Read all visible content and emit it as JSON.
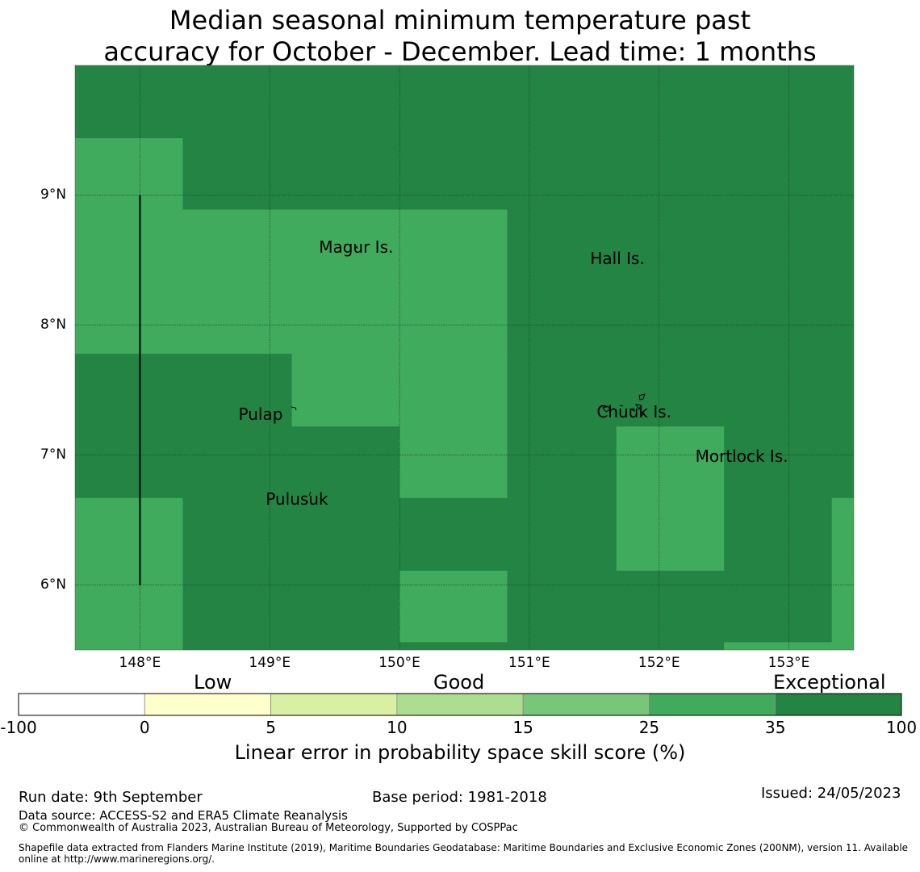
{
  "title": {
    "line1": "Median seasonal minimum temperature past",
    "line2": "accuracy for October - December. Lead time: 1 months"
  },
  "map": {
    "lon_range": [
      147.5,
      153.5
    ],
    "lat_range": [
      5.5,
      10.0
    ],
    "lat_ticks": [
      {
        "value": 9,
        "label": "9°N"
      },
      {
        "value": 8,
        "label": "8°N"
      },
      {
        "value": 7,
        "label": "7°N"
      },
      {
        "value": 6,
        "label": "6°N"
      }
    ],
    "lon_ticks": [
      {
        "value": 148,
        "label": "148°E"
      },
      {
        "value": 149,
        "label": "149°E"
      },
      {
        "value": 150,
        "label": "150°E"
      },
      {
        "value": 151,
        "label": "151°E"
      },
      {
        "value": 152,
        "label": "152°E"
      },
      {
        "value": 153,
        "label": "153°E"
      }
    ],
    "background_category": "35-100",
    "cells_25_35": [
      {
        "lon0": 147.5,
        "lon1": 148.33,
        "lat0": 7.78,
        "lat1": 9.44
      },
      {
        "lon0": 148.33,
        "lon1": 150.83,
        "lat0": 7.78,
        "lat1": 8.89
      },
      {
        "lon0": 149.17,
        "lon1": 150.0,
        "lat0": 7.22,
        "lat1": 7.78
      },
      {
        "lon0": 150.0,
        "lon1": 150.83,
        "lat0": 6.67,
        "lat1": 7.78
      },
      {
        "lon0": 147.5,
        "lon1": 148.33,
        "lat0": 5.5,
        "lat1": 6.67
      },
      {
        "lon0": 150.0,
        "lon1": 150.83,
        "lat0": 5.56,
        "lat1": 6.11
      },
      {
        "lon0": 151.67,
        "lon1": 152.5,
        "lat0": 6.11,
        "lat1": 7.22
      },
      {
        "lon0": 153.33,
        "lon1": 153.5,
        "lat0": 5.5,
        "lat1": 6.67
      },
      {
        "lon0": 152.5,
        "lon1": 153.5,
        "lat0": 5.5,
        "lat1": 5.56
      }
    ],
    "places": [
      {
        "name": "Magur Is.",
        "lon": 149.69,
        "lat": 8.59
      },
      {
        "name": "Hall Is.",
        "lon": 151.78,
        "lat": 8.5
      },
      {
        "name": "Pulap",
        "lon": 149.07,
        "lat": 7.3
      },
      {
        "name": "Chuuk Is.",
        "lon": 151.83,
        "lat": 7.32
      },
      {
        "name": "Mortlock Is.",
        "lon": 152.59,
        "lat": 6.98
      },
      {
        "name": "Pulusuk",
        "lon": 149.28,
        "lat": 6.65
      }
    ],
    "boundary_line": {
      "lon": 148.0,
      "lat0": 6.0,
      "lat1": 9.0
    }
  },
  "legend": {
    "category_labels": [
      "Low",
      "Good",
      "Exceptional"
    ],
    "bins": [
      {
        "from": "-100",
        "to": "0",
        "color": "#ffffff"
      },
      {
        "from": "0",
        "to": "5",
        "color": "#ffffcc"
      },
      {
        "from": "5",
        "to": "10",
        "color": "#d9f0a3"
      },
      {
        "from": "10",
        "to": "15",
        "color": "#addd8e"
      },
      {
        "from": "15",
        "to": "25",
        "color": "#78c679"
      },
      {
        "from": "25",
        "to": "35",
        "color": "#41ab5d"
      },
      {
        "from": "35",
        "to": "100",
        "color": "#238443"
      }
    ],
    "tick_labels": [
      "-100",
      "0",
      "5",
      "10",
      "15",
      "25",
      "35",
      "100"
    ],
    "title": "Linear error in probability space skill score (%)"
  },
  "footer": {
    "run_date": "Run date: 9th September",
    "base_period": "Base period: 1981-2018",
    "issued": "Issued: 24/05/2023",
    "data_source": "Data source: ACCESS-S2 and ERA5 Climate Reanalysis",
    "copyright": "© Commonwealth of Australia 2023, Australian Bureau of Meteorology, Supported by COSPPac",
    "shapefile_line1": "Shapefile data extracted from Flanders Marine Institute (2019), Maritime Boundaries Geodatabase: Maritime Boundaries and Exclusive Economic Zones (200NM), version 11. Available",
    "shapefile_line2": "online at http://www.marineregions.org/."
  }
}
